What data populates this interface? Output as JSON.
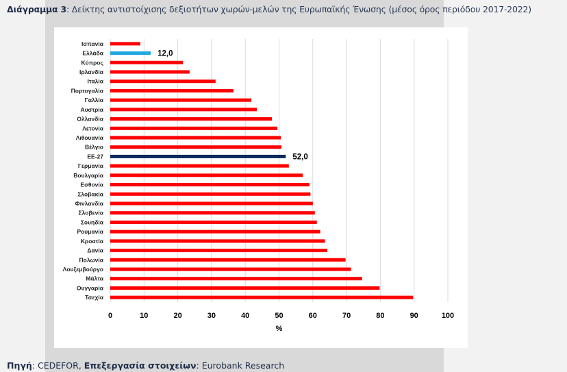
{
  "title": {
    "bold": "Διάγραμμα 3",
    "text": ": Δείκτης αντιστοίχισης δεξιοτήτων χωρών-μελών της Ευρωπαϊκής Ένωσης (μέσος όρος περιόδου 2017-2022)"
  },
  "source": {
    "label1": "Πηγή",
    "text1": ": CEDEFOR, ",
    "label2": "Επεξεργασία στοιχείων",
    "text2": ": Eurobank Research"
  },
  "chart_data": {
    "type": "bar",
    "orientation": "horizontal",
    "xlabel": "%",
    "xlim": [
      0,
      100
    ],
    "xticks": [
      0,
      10,
      20,
      30,
      40,
      50,
      60,
      70,
      80,
      90,
      100
    ],
    "grid": true,
    "categories": [
      "Ισπανία",
      "Ελλάδα",
      "Κύπρος",
      "Ιρλανδία",
      "Ιταλία",
      "Πορτογαλία",
      "Γαλλία",
      "Αυστρία",
      "Ολλανδία",
      "Λετονία",
      "Λιθουανία",
      "Βέλγιο",
      "ΕΕ-27",
      "Γερμανία",
      "Βουλγαρία",
      "Εσθονία",
      "Σλοβακία",
      "Φινλανδία",
      "Σλοβενία",
      "Σουηδία",
      "Ρουμανία",
      "Κροατία",
      "Δανία",
      "Πολωνία",
      "Λουξεμβούργο",
      "Μάλτα",
      "Ουγγαρία",
      "Τσεχία"
    ],
    "values": [
      8.9,
      12.0,
      21.5,
      23.5,
      31.2,
      36.5,
      41.8,
      43.4,
      47.9,
      49.5,
      50.5,
      50.7,
      52.0,
      52.9,
      57.0,
      59.0,
      59.3,
      60.0,
      60.6,
      61.2,
      62.2,
      63.6,
      64.3,
      69.7,
      71.3,
      74.6,
      79.8,
      89.7
    ],
    "data_labels": {
      "Ελλάδα": "12,0",
      "ΕΕ-27": "52,0"
    },
    "colors": {
      "default": "#ff0000",
      "Ελλάδα": "#1ea7e1",
      "ΕΕ-27": "#0d2a5c"
    }
  }
}
